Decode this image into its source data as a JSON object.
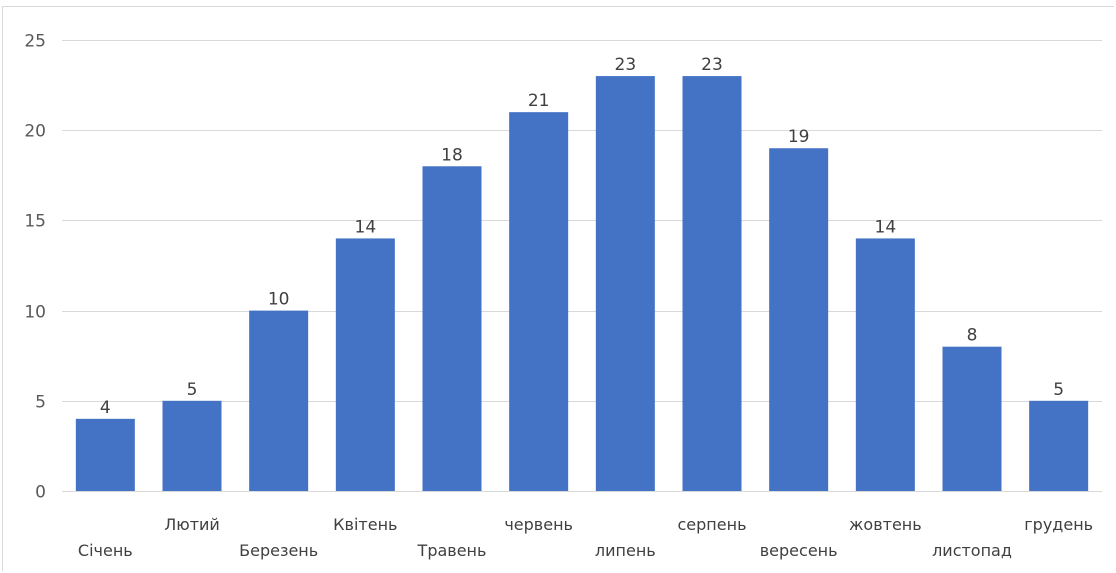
{
  "chart_data": {
    "type": "bar",
    "title": "",
    "xlabel": "",
    "ylabel": "",
    "categories": [
      "Січень",
      "Лютий",
      "Березень",
      "Квітень",
      "Травень",
      "червень",
      "липень",
      "серпень",
      "вересень",
      "жовтень",
      "листопад",
      "грудень"
    ],
    "values": [
      4,
      5,
      10,
      14,
      18,
      21,
      23,
      23,
      19,
      14,
      8,
      5
    ],
    "ylim": [
      0,
      25
    ],
    "yticks": [
      0,
      5,
      10,
      15,
      20,
      25
    ],
    "grid": true,
    "legend": "none",
    "bar_color": "#4472C4"
  }
}
